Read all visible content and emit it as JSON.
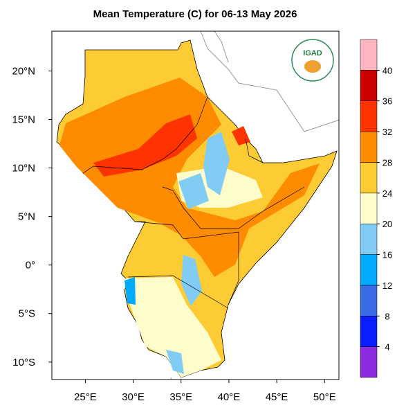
{
  "map": {
    "title": "Mean Temperature (C) for 06-13 May 2026",
    "logo": "IGAD",
    "xlim": [
      21.5,
      51.5
    ],
    "ylim": [
      -11.8,
      24.1
    ],
    "xticks": [
      {
        "value": 25,
        "label": "25°E"
      },
      {
        "value": 30,
        "label": "30°E"
      },
      {
        "value": 35,
        "label": "35°E"
      },
      {
        "value": 40,
        "label": "40°E"
      },
      {
        "value": 45,
        "label": "45°E"
      },
      {
        "value": 50,
        "label": "50°E"
      }
    ],
    "yticks": [
      {
        "value": 20,
        "label": "20°N"
      },
      {
        "value": 15,
        "label": "15°N"
      },
      {
        "value": 10,
        "label": "10°N"
      },
      {
        "value": 5,
        "label": "5°N"
      },
      {
        "value": 0,
        "label": "0°"
      },
      {
        "value": -5,
        "label": "5°S"
      },
      {
        "value": -10,
        "label": "10°S"
      }
    ],
    "colorbar": {
      "levels": [
        4,
        8,
        12,
        16,
        20,
        24,
        28,
        32,
        36,
        40
      ],
      "colors": [
        "#8a2be2",
        "#0a1eff",
        "#3a6be6",
        "#00aaff",
        "#80ccf5",
        "#fffccc",
        "#fdcb34",
        "#ff8c00",
        "#ff3300",
        "#cc0000",
        "#ffb6c1"
      ]
    }
  }
}
